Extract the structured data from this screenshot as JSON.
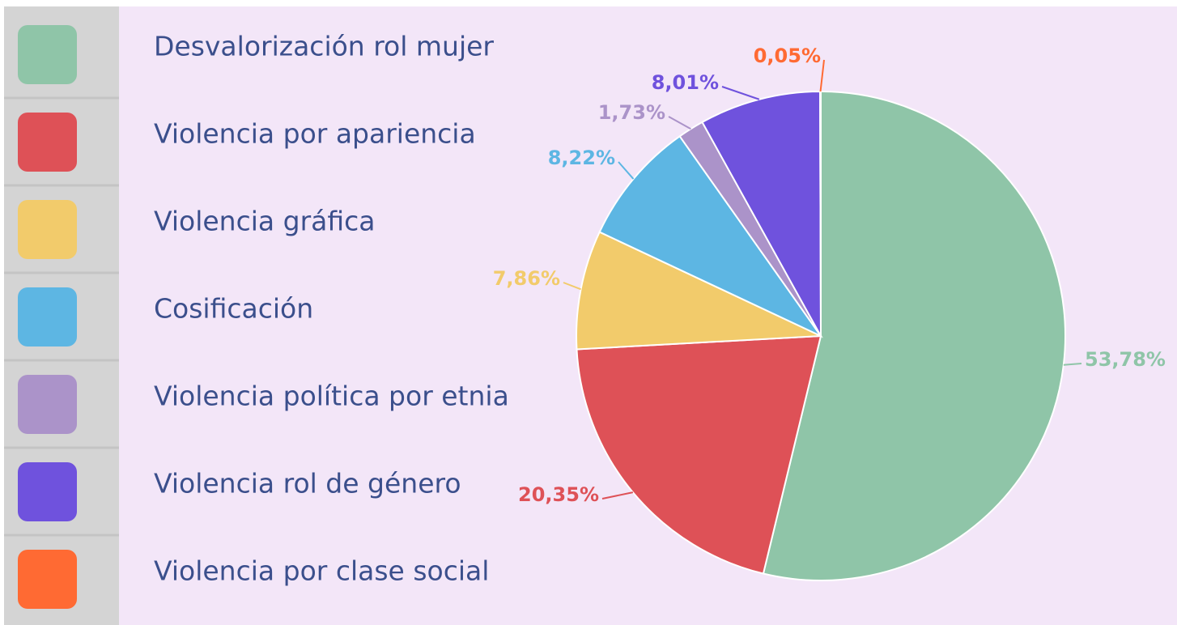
{
  "chart_data": {
    "type": "pie",
    "categories": [
      "Desvalorización rol mujer",
      "Violencia por apariencia",
      "Violencia gráfica",
      "Cosificación",
      "Violencia política por etnia",
      "Violencia rol de género",
      "Violencia por clase social"
    ],
    "values": [
      53.78,
      20.35,
      7.86,
      8.22,
      1.73,
      8.01,
      0.05
    ],
    "value_labels": [
      "53,78%",
      "20,35%",
      "7,86%",
      "8,22%",
      "1,73%",
      "8,01%",
      "0,05%"
    ],
    "colors": [
      "#8fc5a8",
      "#de5157",
      "#f2cb6b",
      "#5db6e3",
      "#ab93c9",
      "#6f52dd",
      "#ff6a33"
    ]
  }
}
